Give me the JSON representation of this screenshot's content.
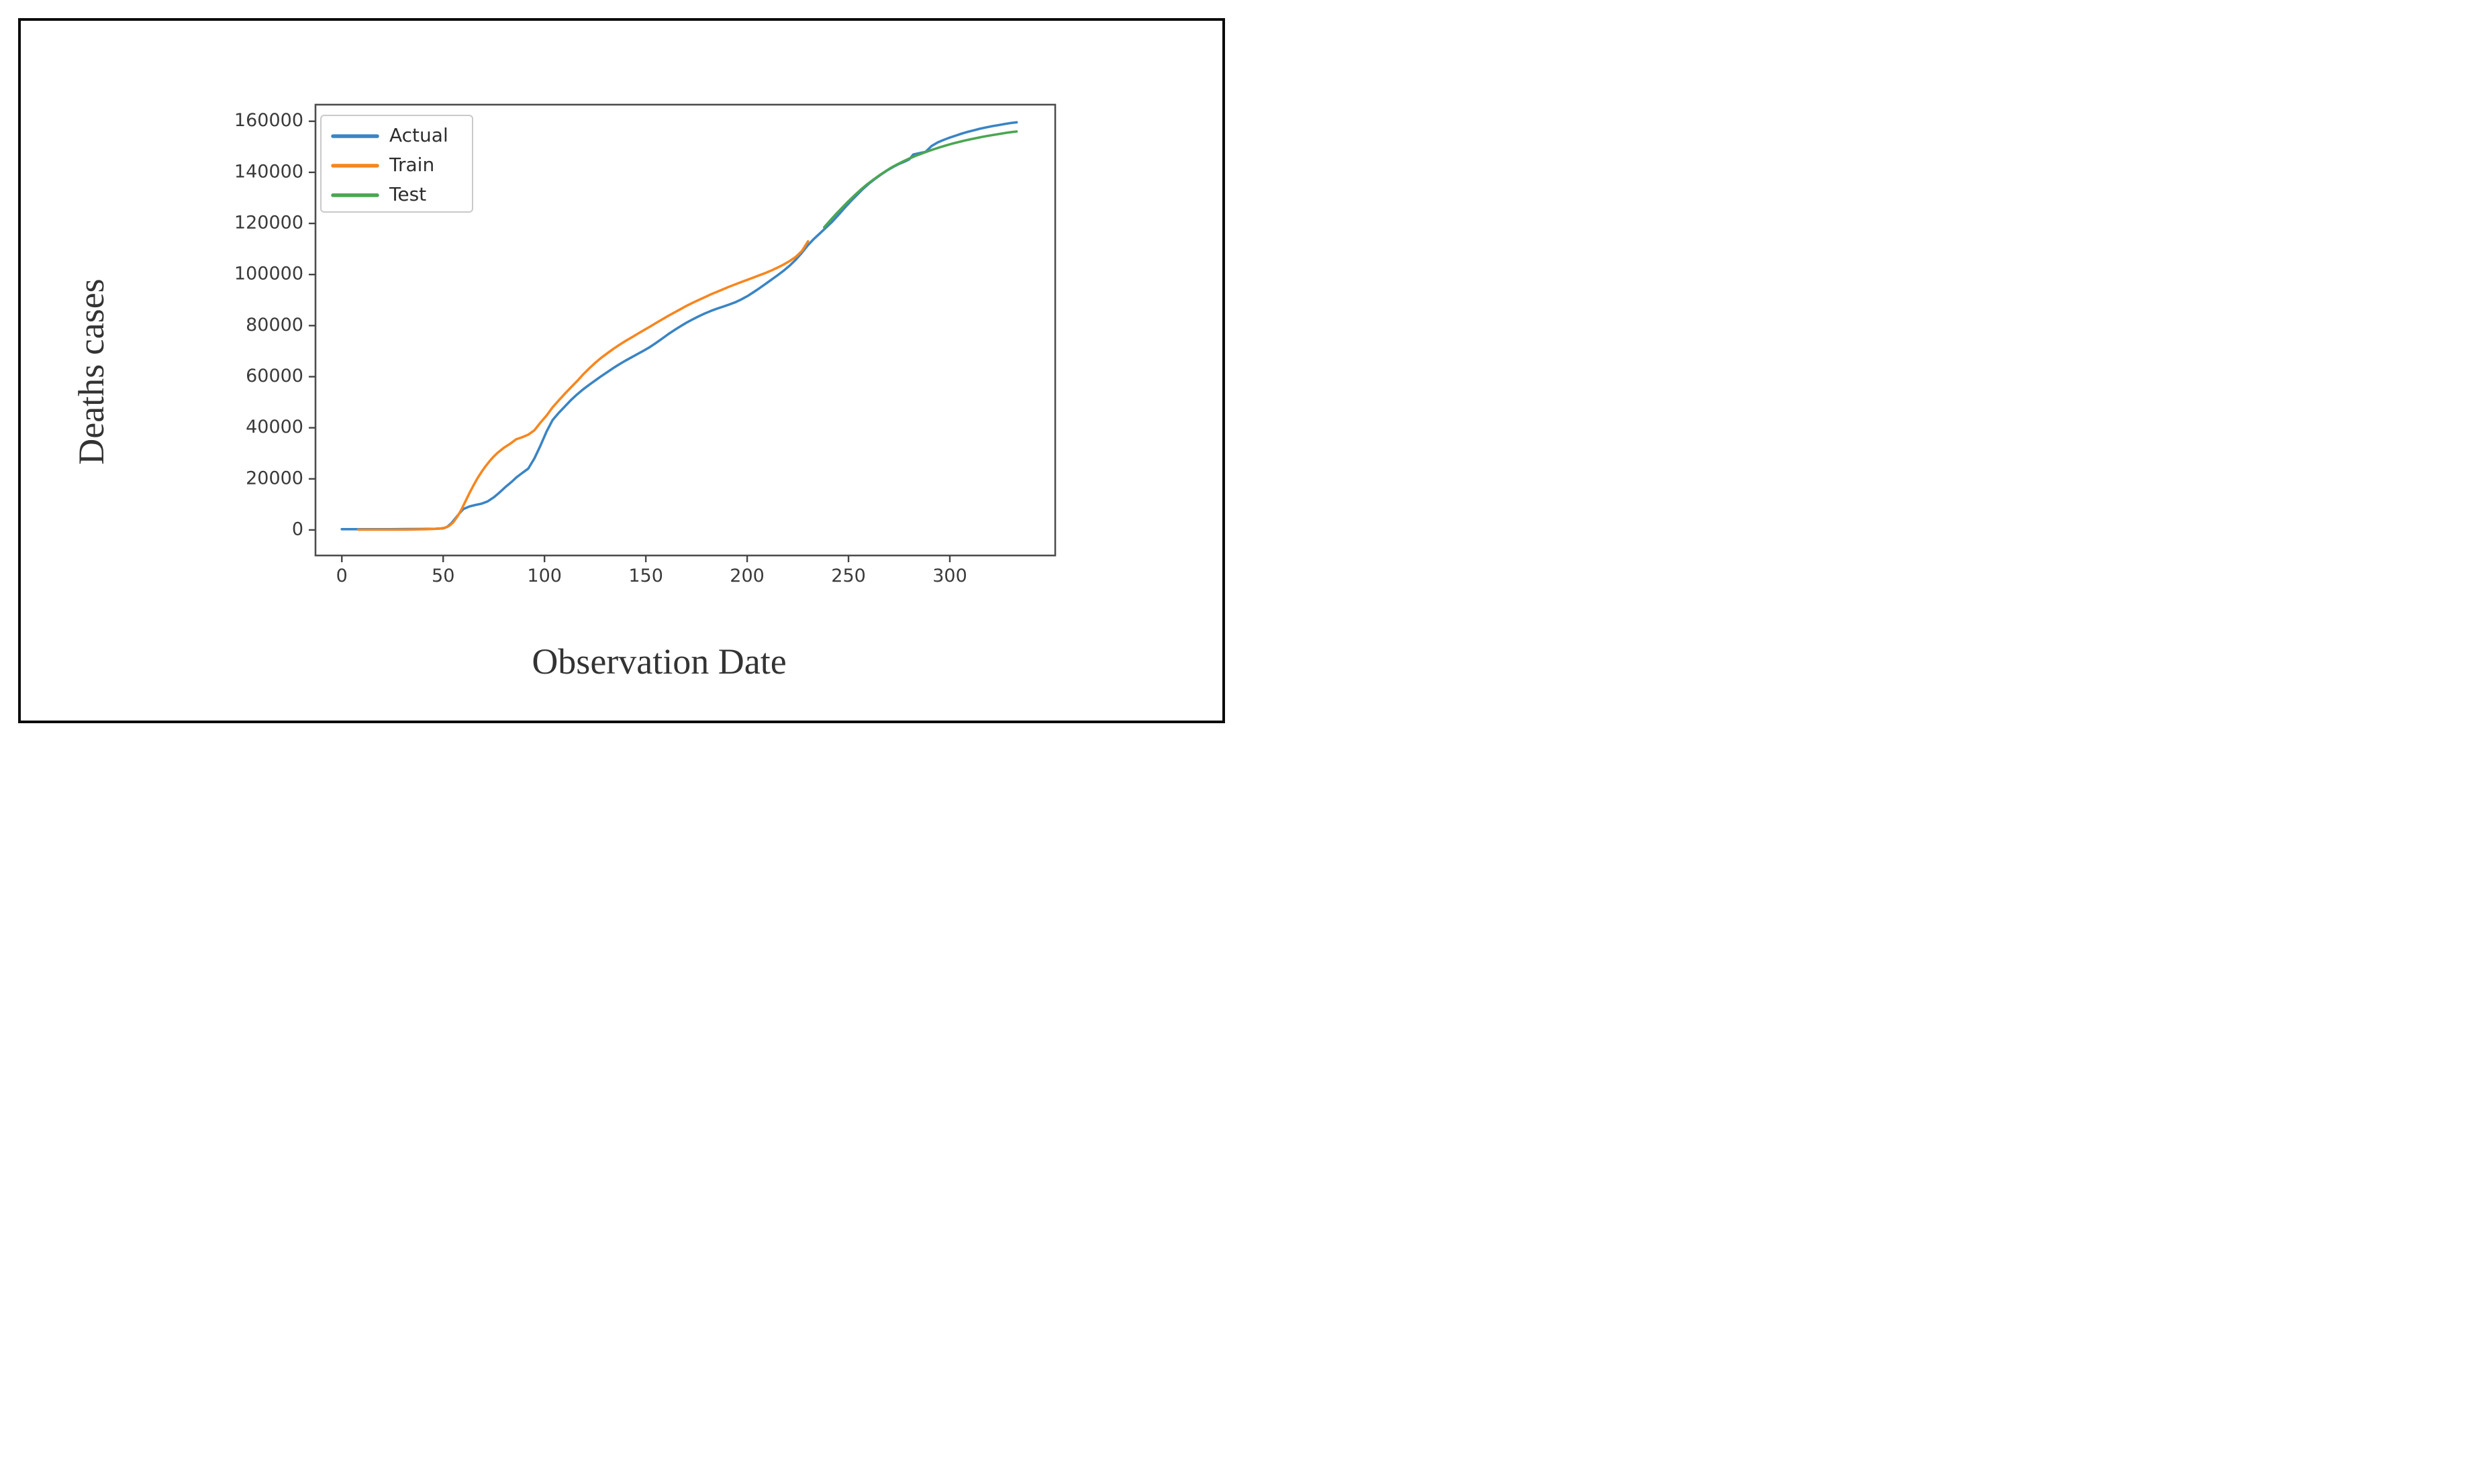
{
  "figure": {
    "xlabel": "Observation Date",
    "ylabel": "Deaths cases"
  },
  "chart_data": {
    "type": "line",
    "title": "",
    "xlabel": "Observation Date",
    "ylabel": "Deaths cases",
    "xlim": [
      -13,
      352
    ],
    "ylim": [
      -10000,
      166500
    ],
    "xticks": [
      0,
      50,
      100,
      150,
      200,
      250,
      300
    ],
    "yticks": [
      0,
      20000,
      40000,
      60000,
      80000,
      100000,
      120000,
      140000,
      160000
    ],
    "grid": false,
    "legend": {
      "position": "upper-left",
      "items": [
        "Actual",
        "Train",
        "Test"
      ]
    },
    "colors": {
      "spine": "#4d4d4d",
      "tick": "#444444",
      "text": "#3a3a3a"
    },
    "series": [
      {
        "name": "Actual",
        "color": "#3a84c4",
        "points": [
          [
            0,
            300
          ],
          [
            8,
            300
          ],
          [
            16,
            300
          ],
          [
            24,
            300
          ],
          [
            32,
            350
          ],
          [
            40,
            400
          ],
          [
            46,
            450
          ],
          [
            50,
            600
          ],
          [
            52,
            1200
          ],
          [
            54,
            2600
          ],
          [
            56,
            4500
          ],
          [
            58,
            6500
          ],
          [
            60,
            8200
          ],
          [
            63,
            9200
          ],
          [
            66,
            9800
          ],
          [
            69,
            10300
          ],
          [
            72,
            11200
          ],
          [
            75,
            12800
          ],
          [
            78,
            14800
          ],
          [
            81,
            17000
          ],
          [
            84,
            19000
          ],
          [
            86,
            20500
          ],
          [
            89,
            22300
          ],
          [
            92,
            24000
          ],
          [
            95,
            28000
          ],
          [
            98,
            33000
          ],
          [
            101,
            38500
          ],
          [
            104,
            43000
          ],
          [
            107,
            45800
          ],
          [
            110,
            48300
          ],
          [
            113,
            50800
          ],
          [
            116,
            53000
          ],
          [
            119,
            55000
          ],
          [
            122,
            56800
          ],
          [
            125,
            58500
          ],
          [
            128,
            60200
          ],
          [
            131,
            61800
          ],
          [
            134,
            63400
          ],
          [
            137,
            64900
          ],
          [
            140,
            66300
          ],
          [
            143,
            67600
          ],
          [
            146,
            68900
          ],
          [
            149,
            70200
          ],
          [
            152,
            71600
          ],
          [
            155,
            73200
          ],
          [
            158,
            74900
          ],
          [
            161,
            76600
          ],
          [
            164,
            78200
          ],
          [
            167,
            79700
          ],
          [
            170,
            81100
          ],
          [
            173,
            82400
          ],
          [
            176,
            83600
          ],
          [
            179,
            84700
          ],
          [
            182,
            85700
          ],
          [
            185,
            86600
          ],
          [
            188,
            87400
          ],
          [
            191,
            88200
          ],
          [
            194,
            89100
          ],
          [
            197,
            90200
          ],
          [
            200,
            91500
          ],
          [
            203,
            93000
          ],
          [
            206,
            94600
          ],
          [
            209,
            96300
          ],
          [
            212,
            98000
          ],
          [
            215,
            99700
          ],
          [
            218,
            101500
          ],
          [
            221,
            103500
          ],
          [
            224,
            105800
          ],
          [
            227,
            108500
          ],
          [
            230,
            111500
          ],
          [
            233,
            114000
          ],
          [
            236,
            116200
          ],
          [
            239,
            118400
          ],
          [
            242,
            120700
          ],
          [
            245,
            123300
          ],
          [
            248,
            126000
          ],
          [
            251,
            128600
          ],
          [
            254,
            131000
          ],
          [
            257,
            133400
          ],
          [
            260,
            135500
          ],
          [
            263,
            137400
          ],
          [
            266,
            139100
          ],
          [
            269,
            140700
          ],
          [
            272,
            142100
          ],
          [
            275,
            143300
          ],
          [
            278,
            144300
          ],
          [
            280,
            145100
          ],
          [
            282,
            147000
          ],
          [
            285,
            147500
          ],
          [
            288,
            148000
          ],
          [
            291,
            150300
          ],
          [
            294,
            151700
          ],
          [
            297,
            152700
          ],
          [
            300,
            153600
          ],
          [
            303,
            154400
          ],
          [
            306,
            155200
          ],
          [
            309,
            155900
          ],
          [
            312,
            156500
          ],
          [
            315,
            157100
          ],
          [
            318,
            157600
          ],
          [
            321,
            158100
          ],
          [
            324,
            158500
          ],
          [
            327,
            158900
          ],
          [
            330,
            159300
          ],
          [
            333,
            159600
          ]
        ]
      },
      {
        "name": "Train",
        "color": "#f6861f",
        "points": [
          [
            8,
            100
          ],
          [
            16,
            100
          ],
          [
            24,
            100
          ],
          [
            32,
            150
          ],
          [
            40,
            250
          ],
          [
            44,
            350
          ],
          [
            48,
            500
          ],
          [
            51,
            900
          ],
          [
            53,
            1600
          ],
          [
            55,
            3000
          ],
          [
            57,
            5200
          ],
          [
            59,
            8000
          ],
          [
            61,
            11200
          ],
          [
            63,
            14500
          ],
          [
            65,
            17500
          ],
          [
            67,
            20300
          ],
          [
            69,
            22800
          ],
          [
            71,
            25000
          ],
          [
            73,
            27000
          ],
          [
            75,
            28800
          ],
          [
            77,
            30300
          ],
          [
            80,
            32200
          ],
          [
            83,
            33700
          ],
          [
            86,
            35500
          ],
          [
            89,
            36300
          ],
          [
            92,
            37300
          ],
          [
            95,
            39000
          ],
          [
            98,
            42000
          ],
          [
            101,
            44800
          ],
          [
            104,
            48000
          ],
          [
            107,
            50700
          ],
          [
            110,
            53300
          ],
          [
            113,
            55800
          ],
          [
            116,
            58200
          ],
          [
            119,
            60800
          ],
          [
            122,
            63200
          ],
          [
            125,
            65400
          ],
          [
            128,
            67400
          ],
          [
            131,
            69200
          ],
          [
            134,
            70900
          ],
          [
            137,
            72500
          ],
          [
            140,
            74000
          ],
          [
            143,
            75400
          ],
          [
            146,
            76800
          ],
          [
            149,
            78200
          ],
          [
            152,
            79600
          ],
          [
            155,
            81000
          ],
          [
            158,
            82400
          ],
          [
            161,
            83800
          ],
          [
            164,
            85100
          ],
          [
            167,
            86400
          ],
          [
            170,
            87700
          ],
          [
            173,
            88900
          ],
          [
            176,
            90000
          ],
          [
            179,
            91100
          ],
          [
            182,
            92200
          ],
          [
            185,
            93200
          ],
          [
            188,
            94200
          ],
          [
            191,
            95200
          ],
          [
            194,
            96100
          ],
          [
            197,
            97000
          ],
          [
            200,
            97900
          ],
          [
            203,
            98800
          ],
          [
            206,
            99700
          ],
          [
            209,
            100600
          ],
          [
            212,
            101600
          ],
          [
            215,
            102700
          ],
          [
            218,
            103900
          ],
          [
            221,
            105300
          ],
          [
            224,
            106900
          ],
          [
            227,
            109200
          ],
          [
            230,
            113000
          ]
        ]
      },
      {
        "name": "Test",
        "color": "#4aa651",
        "points": [
          [
            238,
            118500
          ],
          [
            241,
            121200
          ],
          [
            244,
            123800
          ],
          [
            247,
            126300
          ],
          [
            250,
            128700
          ],
          [
            253,
            131000
          ],
          [
            256,
            133200
          ],
          [
            259,
            135200
          ],
          [
            262,
            137000
          ],
          [
            265,
            138700
          ],
          [
            268,
            140300
          ],
          [
            271,
            141800
          ],
          [
            274,
            143100
          ],
          [
            277,
            144300
          ],
          [
            280,
            145400
          ],
          [
            283,
            146400
          ],
          [
            286,
            147300
          ],
          [
            289,
            148200
          ],
          [
            292,
            149000
          ],
          [
            295,
            149800
          ],
          [
            298,
            150500
          ],
          [
            301,
            151200
          ],
          [
            304,
            151800
          ],
          [
            307,
            152400
          ],
          [
            310,
            152900
          ],
          [
            313,
            153400
          ],
          [
            316,
            153900
          ],
          [
            319,
            154300
          ],
          [
            322,
            154700
          ],
          [
            325,
            155100
          ],
          [
            328,
            155500
          ],
          [
            331,
            155800
          ],
          [
            333,
            156000
          ]
        ]
      }
    ]
  }
}
